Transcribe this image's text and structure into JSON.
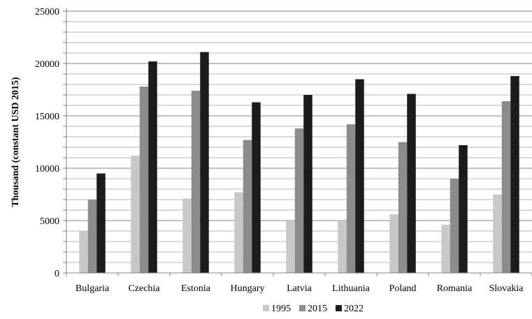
{
  "chart_data": {
    "type": "bar",
    "categories": [
      "Bulgaria",
      "Czechia",
      "Estonia",
      "Hungary",
      "Latvia",
      "Lithuania",
      "Poland",
      "Romania",
      "Slovakia"
    ],
    "series": [
      {
        "name": "1995",
        "color": "#c8c8c8",
        "values": [
          4000,
          11200,
          7100,
          7700,
          5000,
          5000,
          5600,
          4600,
          7500
        ]
      },
      {
        "name": "2015",
        "color": "#8c8c8c",
        "values": [
          7000,
          17800,
          17400,
          12700,
          13800,
          14200,
          12500,
          9000,
          16400
        ]
      },
      {
        "name": "2022",
        "color": "#1c1c1c",
        "values": [
          9500,
          20200,
          21100,
          16300,
          17000,
          18500,
          17100,
          12200,
          18800
        ]
      }
    ],
    "ylabel": "Thousand (constant USD 2015)",
    "xlabel": "",
    "ylim": [
      0,
      25000
    ],
    "yticks": [
      0,
      5000,
      10000,
      15000,
      20000,
      25000
    ],
    "minor_step": 1000,
    "grid": true,
    "legend_position": "bottom"
  }
}
